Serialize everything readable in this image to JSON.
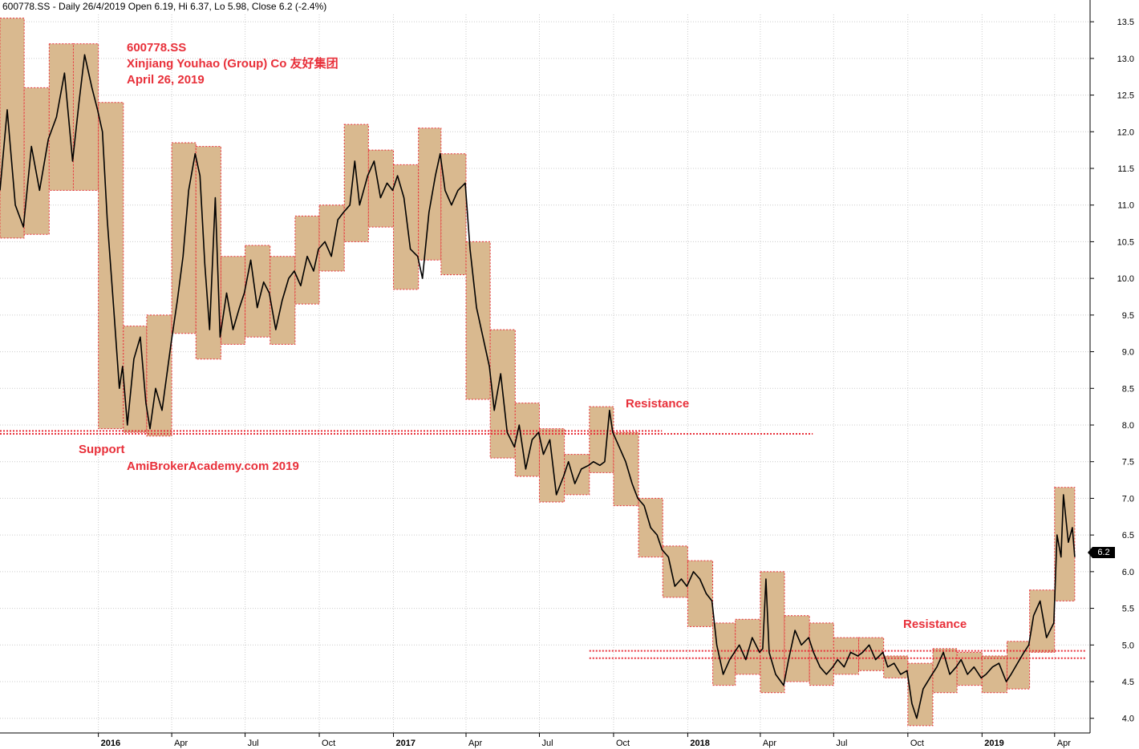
{
  "header": "600778.SS - Daily 26/4/2019 Open 6.19, Hi 6.37, Lo 5.98, Close 6.2 (-2.4%)",
  "annotations": {
    "ticker": "600778.SS",
    "company": "Xinjiang Youhao (Group) Co  友好集团",
    "date": "April 26, 2019",
    "support": "Support",
    "site": "AmiBrokerAcademy.com  2019",
    "resistance_1": "Resistance",
    "resistance_2": "Resistance"
  },
  "last_price_tag": "6.2",
  "colors": {
    "box_fill": "#d9b98f",
    "box_border": "#e8303a",
    "line": "#000000",
    "annotation": "#e8303a",
    "grid": "#cccccc"
  },
  "chart_data": {
    "type": "line",
    "subtype": "daily price with monthly range boxes",
    "y_axis": {
      "min": 3.8,
      "max": 13.6,
      "ticks": [
        4.0,
        4.5,
        5.0,
        5.5,
        6.0,
        6.5,
        7.0,
        7.5,
        8.0,
        8.5,
        9.0,
        9.5,
        10.0,
        10.5,
        11.0,
        11.5,
        12.0,
        12.5,
        13.0,
        13.5
      ],
      "position": "right"
    },
    "x_axis": {
      "start": "2015-09-01",
      "end": "2019-05-15",
      "ticks": [
        {
          "label": "2016",
          "date": "2016-01-01",
          "bold": true
        },
        {
          "label": "Apr",
          "date": "2016-04-01"
        },
        {
          "label": "Jul",
          "date": "2016-07-01"
        },
        {
          "label": "Oct",
          "date": "2016-10-01"
        },
        {
          "label": "2017",
          "date": "2017-01-01",
          "bold": true
        },
        {
          "label": "Apr",
          "date": "2017-04-01"
        },
        {
          "label": "Jul",
          "date": "2017-07-01"
        },
        {
          "label": "Oct",
          "date": "2017-10-01"
        },
        {
          "label": "2018",
          "date": "2018-01-01",
          "bold": true
        },
        {
          "label": "Apr",
          "date": "2018-04-01"
        },
        {
          "label": "Jul",
          "date": "2018-07-01"
        },
        {
          "label": "Oct",
          "date": "2018-10-01"
        },
        {
          "label": "2019",
          "date": "2019-01-01",
          "bold": true
        },
        {
          "label": "Apr",
          "date": "2019-04-01"
        }
      ]
    },
    "grid": true,
    "monthly_ranges": [
      {
        "start": "2015-09-01",
        "end": "2015-10-01",
        "low": 10.55,
        "high": 13.55
      },
      {
        "start": "2015-10-01",
        "end": "2015-11-01",
        "low": 10.6,
        "high": 12.6
      },
      {
        "start": "2015-11-01",
        "end": "2015-12-01",
        "low": 11.2,
        "high": 13.2
      },
      {
        "start": "2015-12-01",
        "end": "2016-01-01",
        "low": 11.2,
        "high": 13.2
      },
      {
        "start": "2016-01-01",
        "end": "2016-02-01",
        "low": 7.95,
        "high": 12.4
      },
      {
        "start": "2016-02-01",
        "end": "2016-03-01",
        "low": 7.9,
        "high": 9.35
      },
      {
        "start": "2016-03-01",
        "end": "2016-04-01",
        "low": 7.85,
        "high": 9.5
      },
      {
        "start": "2016-04-01",
        "end": "2016-05-01",
        "low": 9.25,
        "high": 11.85
      },
      {
        "start": "2016-05-01",
        "end": "2016-06-01",
        "low": 8.9,
        "high": 11.8
      },
      {
        "start": "2016-06-01",
        "end": "2016-07-01",
        "low": 9.1,
        "high": 10.3
      },
      {
        "start": "2016-07-01",
        "end": "2016-08-01",
        "low": 9.2,
        "high": 10.45
      },
      {
        "start": "2016-08-01",
        "end": "2016-09-01",
        "low": 9.1,
        "high": 10.3
      },
      {
        "start": "2016-09-01",
        "end": "2016-10-01",
        "low": 9.65,
        "high": 10.85
      },
      {
        "start": "2016-10-01",
        "end": "2016-11-01",
        "low": 10.1,
        "high": 11.0
      },
      {
        "start": "2016-11-01",
        "end": "2016-12-01",
        "low": 10.5,
        "high": 12.1
      },
      {
        "start": "2016-12-01",
        "end": "2017-01-01",
        "low": 10.7,
        "high": 11.75
      },
      {
        "start": "2017-01-01",
        "end": "2017-02-01",
        "low": 9.85,
        "high": 11.55
      },
      {
        "start": "2017-02-01",
        "end": "2017-03-01",
        "low": 10.25,
        "high": 12.05
      },
      {
        "start": "2017-03-01",
        "end": "2017-04-01",
        "low": 10.05,
        "high": 11.7
      },
      {
        "start": "2017-04-01",
        "end": "2017-05-01",
        "low": 8.35,
        "high": 10.5
      },
      {
        "start": "2017-05-01",
        "end": "2017-06-01",
        "low": 7.55,
        "high": 9.3
      },
      {
        "start": "2017-06-01",
        "end": "2017-07-01",
        "low": 7.3,
        "high": 8.3
      },
      {
        "start": "2017-07-01",
        "end": "2017-08-01",
        "low": 6.95,
        "high": 7.95
      },
      {
        "start": "2017-08-01",
        "end": "2017-09-01",
        "low": 7.05,
        "high": 7.6
      },
      {
        "start": "2017-09-01",
        "end": "2017-10-01",
        "low": 7.35,
        "high": 8.25
      },
      {
        "start": "2017-10-01",
        "end": "2017-11-01",
        "low": 6.9,
        "high": 7.9
      },
      {
        "start": "2017-11-01",
        "end": "2017-12-01",
        "low": 6.2,
        "high": 7.0
      },
      {
        "start": "2017-12-01",
        "end": "2018-01-01",
        "low": 5.65,
        "high": 6.35
      },
      {
        "start": "2018-01-01",
        "end": "2018-02-01",
        "low": 5.25,
        "high": 6.15
      },
      {
        "start": "2018-02-01",
        "end": "2018-03-01",
        "low": 4.45,
        "high": 5.3
      },
      {
        "start": "2018-03-01",
        "end": "2018-04-01",
        "low": 4.6,
        "high": 5.35
      },
      {
        "start": "2018-04-01",
        "end": "2018-05-01",
        "low": 4.35,
        "high": 6.0
      },
      {
        "start": "2018-05-01",
        "end": "2018-06-01",
        "low": 4.5,
        "high": 5.4
      },
      {
        "start": "2018-06-01",
        "end": "2018-07-01",
        "low": 4.45,
        "high": 5.3
      },
      {
        "start": "2018-07-01",
        "end": "2018-08-01",
        "low": 4.6,
        "high": 5.1
      },
      {
        "start": "2018-08-01",
        "end": "2018-09-01",
        "low": 4.65,
        "high": 5.1
      },
      {
        "start": "2018-09-01",
        "end": "2018-10-01",
        "low": 4.55,
        "high": 4.85
      },
      {
        "start": "2018-10-01",
        "end": "2018-11-01",
        "low": 3.9,
        "high": 4.75
      },
      {
        "start": "2018-11-01",
        "end": "2018-12-01",
        "low": 4.35,
        "high": 4.95
      },
      {
        "start": "2018-12-01",
        "end": "2019-01-01",
        "low": 4.45,
        "high": 4.9
      },
      {
        "start": "2019-01-01",
        "end": "2019-02-01",
        "low": 4.35,
        "high": 4.85
      },
      {
        "start": "2019-02-01",
        "end": "2019-03-01",
        "low": 4.4,
        "high": 5.05
      },
      {
        "start": "2019-03-01",
        "end": "2019-04-01",
        "low": 4.9,
        "high": 5.75
      },
      {
        "start": "2019-04-01",
        "end": "2019-04-26",
        "low": 5.6,
        "high": 7.15
      }
    ],
    "price_path": [
      [
        "2015-09-01",
        11.2
      ],
      [
        "2015-09-10",
        12.3
      ],
      [
        "2015-09-20",
        11.0
      ],
      [
        "2015-09-30",
        10.7
      ],
      [
        "2015-10-10",
        11.8
      ],
      [
        "2015-10-20",
        11.2
      ],
      [
        "2015-10-31",
        11.9
      ],
      [
        "2015-11-10",
        12.2
      ],
      [
        "2015-11-20",
        12.8
      ],
      [
        "2015-11-30",
        11.6
      ],
      [
        "2015-12-08",
        12.4
      ],
      [
        "2015-12-15",
        13.05
      ],
      [
        "2015-12-24",
        12.6
      ],
      [
        "2015-12-31",
        12.3
      ],
      [
        "2016-01-06",
        12.0
      ],
      [
        "2016-01-12",
        10.8
      ],
      [
        "2016-01-20",
        9.6
      ],
      [
        "2016-01-27",
        8.5
      ],
      [
        "2016-01-31",
        8.8
      ],
      [
        "2016-02-06",
        8.0
      ],
      [
        "2016-02-14",
        8.9
      ],
      [
        "2016-02-22",
        9.2
      ],
      [
        "2016-02-29",
        8.3
      ],
      [
        "2016-03-05",
        7.95
      ],
      [
        "2016-03-12",
        8.5
      ],
      [
        "2016-03-20",
        8.2
      ],
      [
        "2016-03-31",
        9.1
      ],
      [
        "2016-04-08",
        9.7
      ],
      [
        "2016-04-15",
        10.3
      ],
      [
        "2016-04-22",
        11.2
      ],
      [
        "2016-04-30",
        11.7
      ],
      [
        "2016-05-06",
        11.4
      ],
      [
        "2016-05-12",
        10.2
      ],
      [
        "2016-05-18",
        9.3
      ],
      [
        "2016-05-25",
        11.1
      ],
      [
        "2016-05-31",
        9.2
      ],
      [
        "2016-06-08",
        9.8
      ],
      [
        "2016-06-16",
        9.3
      ],
      [
        "2016-06-24",
        9.6
      ],
      [
        "2016-06-30",
        9.8
      ],
      [
        "2016-07-08",
        10.25
      ],
      [
        "2016-07-16",
        9.6
      ],
      [
        "2016-07-24",
        9.95
      ],
      [
        "2016-07-31",
        9.8
      ],
      [
        "2016-08-08",
        9.3
      ],
      [
        "2016-08-16",
        9.7
      ],
      [
        "2016-08-24",
        10.0
      ],
      [
        "2016-08-31",
        10.1
      ],
      [
        "2016-09-08",
        9.9
      ],
      [
        "2016-09-16",
        10.3
      ],
      [
        "2016-09-24",
        10.1
      ],
      [
        "2016-09-30",
        10.4
      ],
      [
        "2016-10-08",
        10.5
      ],
      [
        "2016-10-16",
        10.3
      ],
      [
        "2016-10-24",
        10.8
      ],
      [
        "2016-10-31",
        10.9
      ],
      [
        "2016-11-08",
        11.0
      ],
      [
        "2016-11-14",
        11.6
      ],
      [
        "2016-11-20",
        11.0
      ],
      [
        "2016-11-30",
        11.4
      ],
      [
        "2016-12-08",
        11.6
      ],
      [
        "2016-12-16",
        11.1
      ],
      [
        "2016-12-24",
        11.3
      ],
      [
        "2016-12-31",
        11.2
      ],
      [
        "2017-01-06",
        11.4
      ],
      [
        "2017-01-14",
        11.1
      ],
      [
        "2017-01-22",
        10.4
      ],
      [
        "2017-01-31",
        10.3
      ],
      [
        "2017-02-06",
        10.0
      ],
      [
        "2017-02-14",
        10.9
      ],
      [
        "2017-02-22",
        11.4
      ],
      [
        "2017-02-28",
        11.7
      ],
      [
        "2017-03-06",
        11.2
      ],
      [
        "2017-03-14",
        11.0
      ],
      [
        "2017-03-22",
        11.2
      ],
      [
        "2017-03-31",
        11.3
      ],
      [
        "2017-04-06",
        10.4
      ],
      [
        "2017-04-14",
        9.6
      ],
      [
        "2017-04-22",
        9.2
      ],
      [
        "2017-04-30",
        8.8
      ],
      [
        "2017-05-06",
        8.2
      ],
      [
        "2017-05-14",
        8.7
      ],
      [
        "2017-05-22",
        7.9
      ],
      [
        "2017-05-31",
        7.7
      ],
      [
        "2017-06-06",
        8.0
      ],
      [
        "2017-06-14",
        7.4
      ],
      [
        "2017-06-22",
        7.8
      ],
      [
        "2017-06-30",
        7.9
      ],
      [
        "2017-07-06",
        7.6
      ],
      [
        "2017-07-14",
        7.8
      ],
      [
        "2017-07-22",
        7.05
      ],
      [
        "2017-07-31",
        7.3
      ],
      [
        "2017-08-06",
        7.5
      ],
      [
        "2017-08-14",
        7.2
      ],
      [
        "2017-08-22",
        7.4
      ],
      [
        "2017-08-31",
        7.45
      ],
      [
        "2017-09-06",
        7.5
      ],
      [
        "2017-09-14",
        7.45
      ],
      [
        "2017-09-20",
        7.5
      ],
      [
        "2017-09-26",
        8.2
      ],
      [
        "2017-09-30",
        7.9
      ],
      [
        "2017-10-08",
        7.7
      ],
      [
        "2017-10-16",
        7.5
      ],
      [
        "2017-10-24",
        7.2
      ],
      [
        "2017-10-31",
        7.0
      ],
      [
        "2017-11-08",
        6.9
      ],
      [
        "2017-11-16",
        6.6
      ],
      [
        "2017-11-24",
        6.5
      ],
      [
        "2017-11-30",
        6.3
      ],
      [
        "2017-12-08",
        6.2
      ],
      [
        "2017-12-16",
        5.8
      ],
      [
        "2017-12-24",
        5.9
      ],
      [
        "2017-12-31",
        5.8
      ],
      [
        "2018-01-08",
        6.0
      ],
      [
        "2018-01-16",
        5.9
      ],
      [
        "2018-01-24",
        5.7
      ],
      [
        "2018-01-31",
        5.6
      ],
      [
        "2018-02-06",
        5.0
      ],
      [
        "2018-02-14",
        4.6
      ],
      [
        "2018-02-22",
        4.8
      ],
      [
        "2018-02-28",
        4.9
      ],
      [
        "2018-03-06",
        5.0
      ],
      [
        "2018-03-14",
        4.8
      ],
      [
        "2018-03-22",
        5.1
      ],
      [
        "2018-03-31",
        4.9
      ],
      [
        "2018-04-04",
        4.95
      ],
      [
        "2018-04-08",
        5.9
      ],
      [
        "2018-04-12",
        4.9
      ],
      [
        "2018-04-20",
        4.6
      ],
      [
        "2018-04-30",
        4.45
      ],
      [
        "2018-05-06",
        4.8
      ],
      [
        "2018-05-14",
        5.2
      ],
      [
        "2018-05-22",
        5.0
      ],
      [
        "2018-05-31",
        5.1
      ],
      [
        "2018-06-06",
        4.9
      ],
      [
        "2018-06-14",
        4.7
      ],
      [
        "2018-06-22",
        4.6
      ],
      [
        "2018-06-30",
        4.7
      ],
      [
        "2018-07-06",
        4.8
      ],
      [
        "2018-07-14",
        4.7
      ],
      [
        "2018-07-22",
        4.9
      ],
      [
        "2018-07-31",
        4.85
      ],
      [
        "2018-08-06",
        4.9
      ],
      [
        "2018-08-14",
        5.0
      ],
      [
        "2018-08-22",
        4.8
      ],
      [
        "2018-08-31",
        4.9
      ],
      [
        "2018-09-06",
        4.7
      ],
      [
        "2018-09-14",
        4.75
      ],
      [
        "2018-09-22",
        4.6
      ],
      [
        "2018-09-30",
        4.65
      ],
      [
        "2018-10-06",
        4.2
      ],
      [
        "2018-10-12",
        4.0
      ],
      [
        "2018-10-20",
        4.4
      ],
      [
        "2018-10-31",
        4.6
      ],
      [
        "2018-11-06",
        4.7
      ],
      [
        "2018-11-14",
        4.9
      ],
      [
        "2018-11-22",
        4.6
      ],
      [
        "2018-11-30",
        4.7
      ],
      [
        "2018-12-06",
        4.8
      ],
      [
        "2018-12-14",
        4.6
      ],
      [
        "2018-12-22",
        4.7
      ],
      [
        "2018-12-31",
        4.55
      ],
      [
        "2019-01-06",
        4.6
      ],
      [
        "2019-01-14",
        4.7
      ],
      [
        "2019-01-22",
        4.75
      ],
      [
        "2019-01-31",
        4.5
      ],
      [
        "2019-02-06",
        4.6
      ],
      [
        "2019-02-14",
        4.75
      ],
      [
        "2019-02-22",
        4.9
      ],
      [
        "2019-02-28",
        5.0
      ],
      [
        "2019-03-06",
        5.4
      ],
      [
        "2019-03-14",
        5.6
      ],
      [
        "2019-03-22",
        5.1
      ],
      [
        "2019-03-31",
        5.3
      ],
      [
        "2019-04-04",
        6.5
      ],
      [
        "2019-04-09",
        6.2
      ],
      [
        "2019-04-12",
        7.05
      ],
      [
        "2019-04-18",
        6.4
      ],
      [
        "2019-04-23",
        6.6
      ],
      [
        "2019-04-26",
        6.2
      ]
    ],
    "reference_lines": [
      {
        "label": "Support",
        "value": 7.92,
        "start": "2015-09-01",
        "end": "2017-11-30"
      },
      {
        "label": "Support",
        "value": 7.88,
        "start": "2015-09-01",
        "end": "2018-06-05"
      },
      {
        "label": "Resistance",
        "value": 4.92,
        "start": "2017-09-01",
        "end": "2019-05-10"
      },
      {
        "label": "Resistance",
        "value": 4.82,
        "start": "2017-09-01",
        "end": "2019-05-10"
      }
    ]
  }
}
